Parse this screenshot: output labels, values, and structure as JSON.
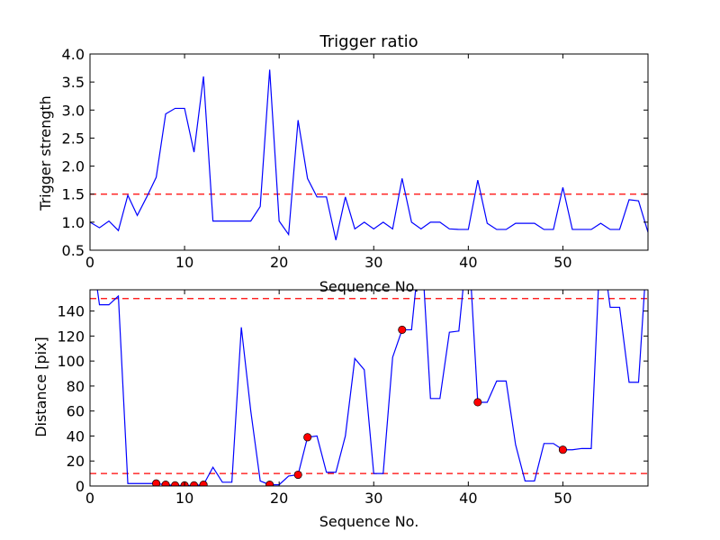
{
  "chart_data": [
    {
      "type": "line",
      "title": "Trigger ratio",
      "xlabel": "Sequence No.",
      "ylabel": "Trigger strength",
      "xlim": [
        0,
        59
      ],
      "ylim": [
        0.5,
        4.0
      ],
      "xticks": [
        0,
        10,
        20,
        30,
        40,
        50
      ],
      "yticks": [
        0.5,
        1.0,
        1.5,
        2.0,
        2.5,
        3.0,
        3.5,
        4.0
      ],
      "xtick_labels": [
        "0",
        "10",
        "20",
        "30",
        "40",
        "50"
      ],
      "ytick_labels": [
        "0.5",
        "1.0",
        "1.5",
        "2.0",
        "2.5",
        "3.0",
        "3.5",
        "4.0"
      ],
      "series": [
        {
          "color": "#0000ff",
          "x": [
            0,
            1,
            2,
            3,
            4,
            5,
            6,
            7,
            8,
            9,
            10,
            11,
            12,
            13,
            14,
            15,
            16,
            17,
            18,
            19,
            20,
            21,
            22,
            23,
            24,
            25,
            26,
            27,
            28,
            29,
            30,
            31,
            32,
            33,
            34,
            35,
            36,
            37,
            38,
            39,
            40,
            41,
            42,
            43,
            44,
            45,
            46,
            47,
            48,
            49,
            50,
            51,
            52,
            53,
            54,
            55,
            56,
            57,
            58,
            59
          ],
          "y": [
            1.0,
            0.9,
            1.02,
            0.85,
            1.48,
            1.12,
            1.45,
            1.8,
            2.93,
            3.03,
            3.03,
            2.25,
            3.6,
            1.02,
            1.02,
            1.02,
            1.02,
            1.02,
            1.28,
            3.72,
            1.02,
            0.78,
            2.82,
            1.78,
            1.45,
            1.45,
            0.68,
            1.45,
            0.88,
            1.0,
            0.88,
            1.0,
            0.88,
            1.78,
            1.0,
            0.88,
            1.0,
            1.0,
            0.88,
            0.87,
            0.87,
            1.75,
            0.98,
            0.87,
            0.87,
            0.98,
            0.98,
            0.98,
            0.87,
            0.87,
            1.62,
            0.87,
            0.87,
            0.87,
            0.98,
            0.87,
            0.87,
            1.4,
            1.38,
            0.82
          ]
        }
      ],
      "hlines": [
        {
          "y": 1.5,
          "color": "#ff0000",
          "style": "dashed"
        }
      ]
    },
    {
      "type": "line",
      "title": "",
      "xlabel": "Sequence No.",
      "ylabel": "Distance [pix]",
      "xlim": [
        0,
        59
      ],
      "ylim": [
        0,
        157
      ],
      "xticks": [
        0,
        10,
        20,
        30,
        40,
        50
      ],
      "yticks": [
        0,
        20,
        40,
        60,
        80,
        100,
        120,
        140
      ],
      "xtick_labels": [
        "0",
        "10",
        "20",
        "30",
        "40",
        "50"
      ],
      "ytick_labels": [
        "0",
        "20",
        "40",
        "60",
        "80",
        "100",
        "120",
        "140"
      ],
      "series": [
        {
          "color": "#0000ff",
          "x": [
            0,
            1,
            2,
            3,
            4,
            5,
            6,
            7,
            8,
            9,
            10,
            11,
            12,
            13,
            14,
            15,
            16,
            17,
            18,
            19,
            20,
            21,
            22,
            23,
            24,
            25,
            26,
            27,
            28,
            29,
            30,
            31,
            32,
            33,
            34,
            35,
            36,
            37,
            38,
            39,
            40,
            41,
            42,
            43,
            44,
            45,
            46,
            47,
            48,
            49,
            50,
            51,
            52,
            53,
            54,
            55,
            56,
            57,
            58,
            59
          ],
          "y": [
            200,
            145,
            145,
            152,
            2,
            2,
            2,
            2,
            1,
            0.5,
            0.5,
            0.5,
            1,
            15,
            3,
            3,
            127,
            60,
            4,
            1,
            1,
            8,
            9,
            39,
            40,
            11,
            11,
            40,
            102,
            93,
            10,
            10,
            103,
            125,
            125,
            200,
            70,
            70,
            123,
            124,
            200,
            67,
            67,
            84,
            84,
            33,
            4,
            4,
            34,
            34,
            29,
            29,
            30,
            30,
            200,
            143,
            143,
            83,
            83,
            200
          ]
        }
      ],
      "markers": {
        "color": "#ff0000",
        "x": [
          7,
          8,
          9,
          10,
          11,
          12,
          19,
          22,
          23,
          33,
          41,
          50
        ],
        "y": [
          2,
          1,
          0.5,
          0.5,
          0.5,
          1,
          1,
          9,
          39,
          125,
          67,
          29
        ]
      },
      "hlines": [
        {
          "y": 150,
          "color": "#ff0000",
          "style": "dashed"
        },
        {
          "y": 10,
          "color": "#ff0000",
          "style": "dashed"
        }
      ]
    }
  ]
}
